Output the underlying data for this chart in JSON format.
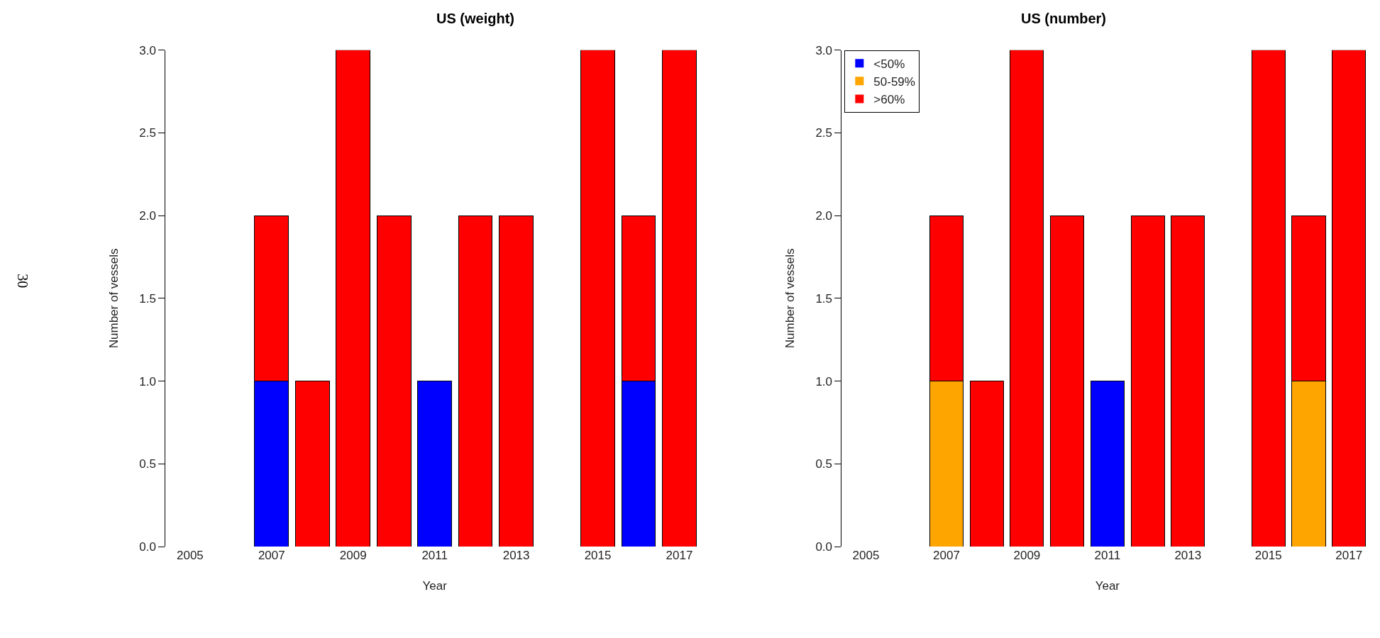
{
  "chart_data": [
    {
      "type": "bar",
      "title": "US (weight)",
      "xlabel": "Year",
      "ylabel": "Number of vessels",
      "stacked": true,
      "legend": false,
      "categories": [
        "2005",
        null,
        "2007",
        null,
        "2009",
        null,
        "2011",
        null,
        "2013",
        null,
        "2015",
        null,
        "2017"
      ],
      "ylim": [
        0,
        3
      ],
      "yticks": [
        {
          "value": 0,
          "label": "0.0"
        },
        {
          "value": 0.5,
          "label": "0.5"
        },
        {
          "value": 1,
          "label": "1.0"
        },
        {
          "value": 1.5,
          "label": "1.5"
        },
        {
          "value": 2,
          "label": "2.0"
        },
        {
          "value": 2.5,
          "label": "2.5"
        },
        {
          "value": 3,
          "label": "3.0"
        }
      ],
      "annotations": [
        "30"
      ],
      "series": [
        {
          "color": "#0000ff",
          "values": [
            0,
            0,
            1,
            0,
            0,
            0,
            1,
            0,
            0,
            0,
            0,
            1,
            0
          ]
        },
        {
          "color": "#ff0000",
          "values": [
            0,
            0,
            1,
            1,
            3,
            2,
            0,
            2,
            2,
            0,
            3,
            1,
            3
          ]
        }
      ]
    },
    {
      "type": "bar",
      "title": "US (number)",
      "xlabel": "Year",
      "ylabel": "Number of vessels",
      "stacked": true,
      "legend": "top left",
      "categories": [
        "2005",
        null,
        "2007",
        null,
        "2009",
        null,
        "2011",
        null,
        "2013",
        null,
        "2015",
        null,
        "2017"
      ],
      "ylim": [
        0,
        3
      ],
      "yticks": [
        {
          "value": 0,
          "label": "0.0"
        },
        {
          "value": 0.5,
          "label": "0.5"
        },
        {
          "value": 1,
          "label": "1.0"
        },
        {
          "value": 1.5,
          "label": "1.5"
        },
        {
          "value": 2,
          "label": "2.0"
        },
        {
          "value": 2.5,
          "label": "2.5"
        },
        {
          "value": 3,
          "label": "3.0"
        }
      ],
      "series": [
        {
          "name": "<50%",
          "color": "#0000ff",
          "values": [
            0,
            0,
            0,
            0,
            0,
            0,
            1,
            0,
            0,
            0,
            0,
            0,
            0
          ]
        },
        {
          "name": "50-59%",
          "color": "#ffa500",
          "values": [
            0,
            0,
            1,
            0,
            0,
            0,
            0,
            0,
            0,
            0,
            0,
            1,
            0
          ]
        },
        {
          "name": ">60%",
          "color": "#ff0000",
          "values": [
            0,
            0,
            1,
            1,
            3,
            2,
            0,
            2,
            2,
            0,
            3,
            1,
            3
          ]
        }
      ]
    }
  ]
}
